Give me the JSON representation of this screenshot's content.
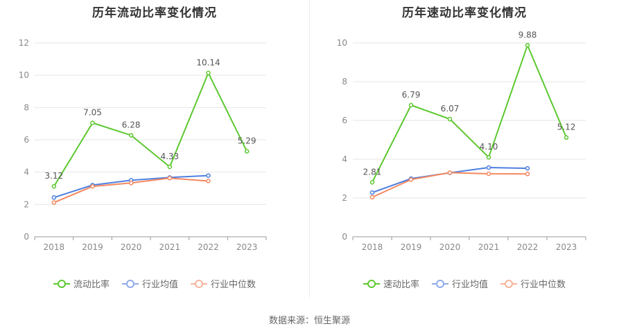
{
  "source": "数据来源：恒生聚源",
  "chart_data": [
    {
      "type": "line",
      "title": "历年流动比率变化情况",
      "categories": [
        "2018",
        "2019",
        "2020",
        "2021",
        "2022",
        "2023"
      ],
      "ylim": [
        0,
        12
      ],
      "yticks": [
        0,
        2,
        4,
        6,
        8,
        10,
        12
      ],
      "grid": true,
      "legend_position": "bottom",
      "series": [
        {
          "name": "流动比率",
          "color": "#5cc82f",
          "labels": [
            "3.12",
            "7.05",
            "6.28",
            "4.33",
            "10.14",
            "5.29"
          ],
          "values": [
            3.12,
            7.05,
            6.28,
            4.33,
            10.14,
            5.29
          ]
        },
        {
          "name": "行业均值",
          "color": "#4d7fe0",
          "values": [
            2.43,
            3.2,
            3.5,
            3.67,
            3.79,
            null
          ]
        },
        {
          "name": "行业中位数",
          "color": "#f4875f",
          "values": [
            2.12,
            3.12,
            3.33,
            3.63,
            3.45,
            null
          ]
        }
      ]
    },
    {
      "type": "line",
      "title": "历年速动比率变化情况",
      "categories": [
        "2018",
        "2019",
        "2020",
        "2021",
        "2022",
        "2023"
      ],
      "ylim": [
        0,
        10
      ],
      "yticks": [
        0,
        2,
        4,
        6,
        8,
        10
      ],
      "grid": true,
      "legend_position": "bottom",
      "series": [
        {
          "name": "速动比率",
          "color": "#5cc82f",
          "labels": [
            "2.81",
            "6.79",
            "6.07",
            "4.10",
            "9.88",
            "5.12"
          ],
          "values": [
            2.81,
            6.79,
            6.07,
            4.1,
            9.88,
            5.12
          ]
        },
        {
          "name": "行业均值",
          "color": "#4d7fe0",
          "values": [
            2.28,
            3.0,
            3.3,
            3.57,
            3.53,
            null
          ]
        },
        {
          "name": "行业中位数",
          "color": "#f4875f",
          "values": [
            2.04,
            2.95,
            3.31,
            3.25,
            3.24,
            null
          ]
        }
      ]
    }
  ]
}
